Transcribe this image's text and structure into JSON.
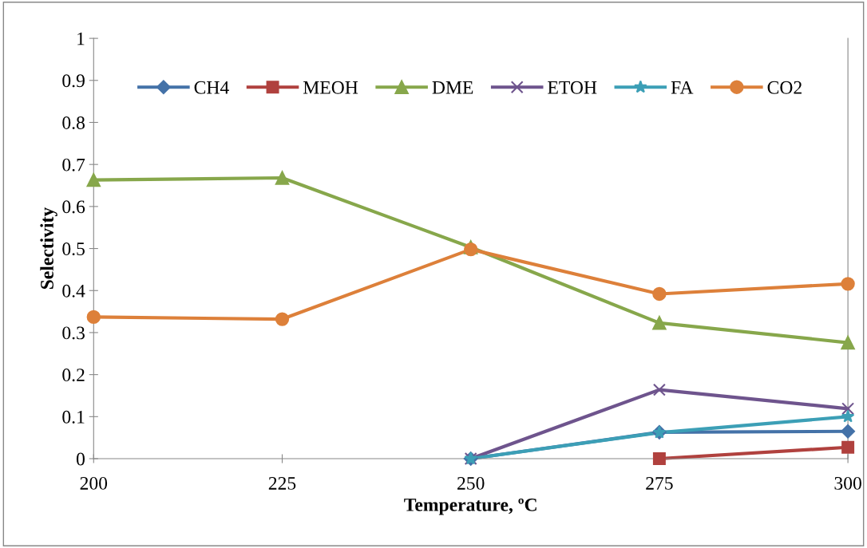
{
  "chart_data": {
    "type": "line",
    "xlabel": "Temperature, ºC",
    "ylabel": "Selectivity",
    "x": [
      200,
      225,
      250,
      275,
      300
    ],
    "xlim": [
      200,
      300
    ],
    "xticks": [
      200,
      225,
      250,
      275,
      300
    ],
    "ylim": [
      0,
      1
    ],
    "yticks": [
      0,
      0.1,
      0.2,
      0.3,
      0.4,
      0.5,
      0.6,
      0.7,
      0.8,
      0.9,
      1
    ],
    "grid": false,
    "legend": "top",
    "line_style": "solid",
    "series": [
      {
        "name": "CH4",
        "color": "#4472a8",
        "marker": "diamond",
        "values": [
          null,
          null,
          0,
          0.063,
          0.065
        ]
      },
      {
        "name": "MEOH",
        "color": "#b0413e",
        "marker": "square",
        "values": [
          null,
          null,
          null,
          0,
          0.027
        ]
      },
      {
        "name": "DME",
        "color": "#87a74b",
        "marker": "triangle",
        "values": [
          0.663,
          0.668,
          0.503,
          0.323,
          0.276
        ]
      },
      {
        "name": "ETOH",
        "color": "#6e548d",
        "marker": "cross",
        "values": [
          null,
          null,
          0,
          0.164,
          0.119
        ]
      },
      {
        "name": "FA",
        "color": "#3c9fb6",
        "marker": "star",
        "values": [
          null,
          null,
          0,
          0.062,
          0.1
        ]
      },
      {
        "name": "CO2",
        "color": "#dd803a",
        "marker": "circle",
        "values": [
          0.337,
          0.332,
          0.498,
          0.392,
          0.416
        ]
      }
    ]
  }
}
